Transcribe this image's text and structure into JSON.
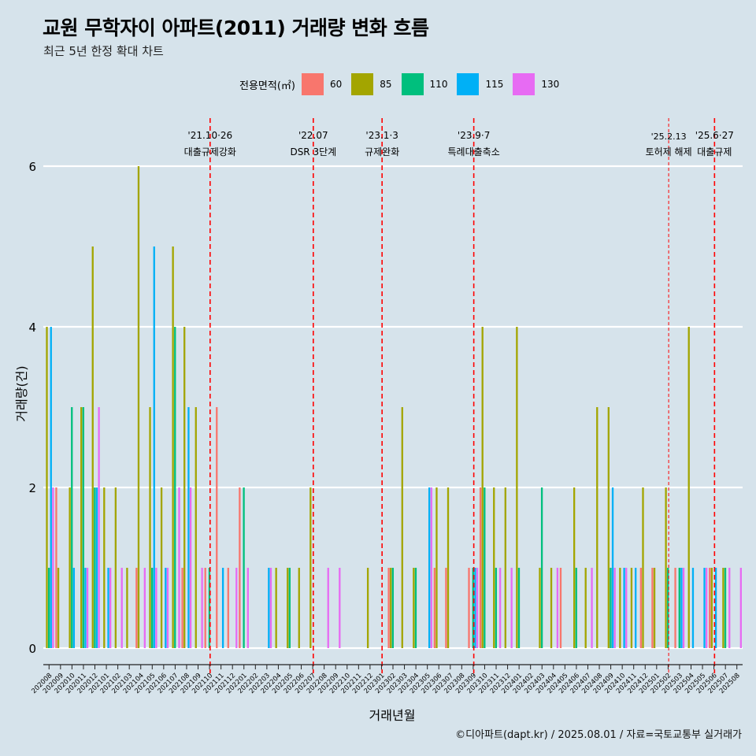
{
  "title": "교원 무학자이 아파트(2011) 거래량 변화 흐름",
  "subtitle": "최근 5년 한정 확대 차트",
  "caption": "©디아파트(dapt.kr) / 2025.08.01 / 자료=국토교통부 실거래가",
  "legend": {
    "title": "전용면적(㎡)",
    "items": [
      {
        "label": "60",
        "color": "#f8766d"
      },
      {
        "label": "85",
        "color": "#a3a500"
      },
      {
        "label": "110",
        "color": "#00bf7d"
      },
      {
        "label": "115",
        "color": "#00b0f6"
      },
      {
        "label": "130",
        "color": "#e76bf3"
      }
    ]
  },
  "chart_data": {
    "type": "bar",
    "xlabel": "거래년월",
    "ylabel": "거래량(건)",
    "ylim": [
      0,
      6
    ],
    "yticks": [
      0,
      2,
      4,
      6
    ],
    "grid": "horizontal",
    "legend_position": "top",
    "categories": [
      "202008",
      "202009",
      "202010",
      "202011",
      "202012",
      "202101",
      "202102",
      "202103",
      "202104",
      "202105",
      "202106",
      "202107",
      "202108",
      "202109",
      "202110",
      "202111",
      "202112",
      "202201",
      "202202",
      "202203",
      "202204",
      "202205",
      "202206",
      "202207",
      "202208",
      "202209",
      "202210",
      "202211",
      "202212",
      "202301",
      "202302",
      "202303",
      "202304",
      "202305",
      "202306",
      "202307",
      "202308",
      "202309",
      "202310",
      "202311",
      "202312",
      "202401",
      "202402",
      "202403",
      "202404",
      "202405",
      "202406",
      "202407",
      "202408",
      "202409",
      "202410",
      "202411",
      "202412",
      "202501",
      "202502",
      "202503",
      "202504",
      "202505",
      "202506",
      "202507",
      "202508"
    ],
    "series": [
      {
        "name": "60",
        "color": "#f8766d",
        "values": [
          0,
          2,
          0,
          0,
          0,
          0,
          0,
          0,
          1,
          0,
          0,
          0,
          1,
          0,
          1,
          3,
          1,
          2,
          0,
          0,
          0,
          0,
          0,
          0,
          0,
          0,
          0,
          0,
          0,
          0,
          1,
          0,
          0,
          0,
          1,
          1,
          0,
          1,
          2,
          0,
          0,
          0,
          0,
          0,
          0,
          1,
          0,
          0,
          0,
          0,
          0,
          0,
          1,
          1,
          0,
          1,
          0,
          0,
          1,
          0,
          0
        ]
      },
      {
        "name": "85",
        "color": "#a3a500",
        "values": [
          4,
          1,
          2,
          3,
          5,
          2,
          2,
          1,
          6,
          3,
          2,
          5,
          4,
          3,
          0,
          0,
          0,
          0,
          0,
          0,
          1,
          1,
          1,
          2,
          0,
          0,
          0,
          0,
          1,
          0,
          1,
          3,
          1,
          0,
          2,
          2,
          0,
          0,
          4,
          2,
          2,
          4,
          0,
          1,
          1,
          0,
          2,
          1,
          3,
          3,
          1,
          1,
          2,
          1,
          2,
          0,
          4,
          0,
          1,
          1,
          0
        ]
      },
      {
        "name": "110",
        "color": "#00bf7d",
        "values": [
          1,
          0,
          3,
          3,
          2,
          0,
          0,
          0,
          0,
          1,
          0,
          4,
          0,
          0,
          1,
          0,
          0,
          2,
          0,
          0,
          0,
          1,
          0,
          0,
          0,
          0,
          0,
          0,
          0,
          0,
          1,
          0,
          1,
          0,
          0,
          0,
          0,
          1,
          2,
          1,
          0,
          1,
          0,
          2,
          0,
          0,
          1,
          0,
          0,
          1,
          0,
          0,
          0,
          0,
          1,
          1,
          0,
          0,
          0,
          1,
          0
        ]
      },
      {
        "name": "115",
        "color": "#00b0f6",
        "values": [
          4,
          0,
          1,
          1,
          2,
          1,
          0,
          0,
          0,
          5,
          1,
          0,
          3,
          0,
          0,
          1,
          0,
          0,
          0,
          1,
          0,
          0,
          0,
          0,
          0,
          0,
          0,
          0,
          0,
          0,
          0,
          0,
          0,
          2,
          0,
          0,
          0,
          1,
          0,
          0,
          0,
          0,
          0,
          0,
          0,
          0,
          0,
          0,
          0,
          2,
          1,
          1,
          0,
          0,
          0,
          1,
          1,
          1,
          1,
          0,
          0
        ]
      },
      {
        "name": "130",
        "color": "#e76bf3",
        "values": [
          2,
          0,
          0,
          1,
          3,
          1,
          1,
          0,
          1,
          1,
          1,
          2,
          2,
          1,
          0,
          0,
          1,
          1,
          0,
          1,
          0,
          0,
          0,
          0,
          1,
          1,
          0,
          0,
          0,
          0,
          0,
          0,
          0,
          2,
          0,
          0,
          0,
          1,
          0,
          1,
          1,
          0,
          0,
          0,
          1,
          0,
          0,
          1,
          0,
          1,
          1,
          0,
          0,
          0,
          0,
          1,
          0,
          1,
          0,
          1,
          1
        ]
      }
    ],
    "annotations": [
      {
        "month": "202110",
        "line1": "'21.10·26",
        "line2": "대출규제강화",
        "style": "bold"
      },
      {
        "month": "202207",
        "line1": "'22.07",
        "line2": "DSR 3단계",
        "style": "bold"
      },
      {
        "month": "202301",
        "line1": "'23.1·3",
        "line2": "규제완화",
        "style": "bold"
      },
      {
        "month": "202309",
        "line1": "'23.9·7",
        "line2": "특례대출축소",
        "style": "bold"
      },
      {
        "month": "202502",
        "line1": "'25.2.13",
        "line2": "토허제 해제",
        "style": "thin"
      },
      {
        "month": "202506",
        "line1": "'25.6·27",
        "line2": "대출규제",
        "style": "bold"
      }
    ]
  }
}
